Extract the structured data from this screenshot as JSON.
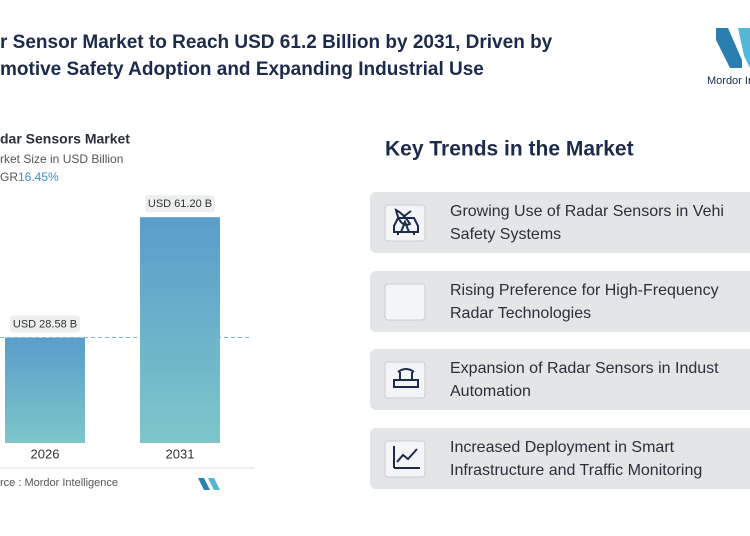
{
  "header": {
    "title_lines": [
      "r Sensor Market to Reach USD 61.2 Billion by 2031, Driven by",
      "motive Safety Adoption and Expanding Industrial Use"
    ],
    "logo_text": "Mordor Ir"
  },
  "chart_data": {
    "type": "bar",
    "title": "dar Sensors Market",
    "subtitle": "rket Size in USD Billion",
    "cagr_label": "GR",
    "cagr_value": "16.45%",
    "categories": [
      "2026",
      "2031"
    ],
    "values": [
      28.58,
      61.2
    ],
    "value_labels": [
      "USD 28.58 B",
      "USD 61.20 B"
    ],
    "color": "#5fa3cc",
    "source": "rce : Mordor Intelligence"
  },
  "trends": {
    "title": "Key Trends in the Market",
    "items": [
      [
        "Growing Use of Radar Sensors in Vehi",
        "Safety Systems"
      ],
      [
        "Rising Preference for High-Frequency",
        "Radar Technologies"
      ],
      [
        "Expansion of Radar Sensors in Indust",
        "Automation"
      ],
      [
        "Increased Deployment in Smart",
        "Infrastructure and Traffic Monitoring"
      ]
    ]
  }
}
